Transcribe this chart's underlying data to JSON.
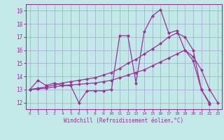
{
  "xlabel": "Windchill (Refroidissement éolien,°C)",
  "xlim": [
    -0.5,
    23.5
  ],
  "ylim": [
    11.5,
    19.5
  ],
  "xticks": [
    0,
    1,
    2,
    3,
    4,
    5,
    6,
    7,
    8,
    9,
    10,
    11,
    12,
    13,
    14,
    15,
    16,
    17,
    18,
    19,
    20,
    21,
    22,
    23
  ],
  "yticks": [
    12,
    13,
    14,
    15,
    16,
    17,
    18,
    19
  ],
  "background_color": "#c2e8e8",
  "grid_color": "#a0a8cc",
  "line_color": "#993399",
  "line1_x": [
    0,
    1,
    2,
    3,
    4,
    5,
    6,
    7,
    8,
    9,
    10,
    11,
    12,
    13,
    14,
    15,
    16,
    17,
    18,
    19,
    20,
    21,
    22
  ],
  "line1_y": [
    13.0,
    13.7,
    13.3,
    13.5,
    13.3,
    13.3,
    12.0,
    12.9,
    12.9,
    12.9,
    13.0,
    17.1,
    17.1,
    13.5,
    17.4,
    18.6,
    19.1,
    17.3,
    17.5,
    16.0,
    15.2,
    13.0,
    11.9
  ],
  "line2_x": [
    0,
    1,
    2,
    3,
    4,
    5,
    6,
    7,
    8,
    9,
    10,
    11,
    12,
    13,
    14,
    15,
    16,
    17,
    18,
    19,
    20,
    21,
    22
  ],
  "line2_y": [
    13.0,
    13.1,
    13.2,
    13.35,
    13.5,
    13.6,
    13.7,
    13.8,
    13.9,
    14.1,
    14.3,
    14.6,
    15.0,
    15.3,
    15.7,
    16.1,
    16.5,
    17.0,
    17.3,
    17.0,
    16.0,
    13.0,
    12.0
  ],
  "line3_x": [
    0,
    1,
    2,
    3,
    4,
    5,
    6,
    7,
    8,
    9,
    10,
    11,
    12,
    13,
    14,
    15,
    16,
    17,
    18,
    19,
    20,
    21,
    22,
    23
  ],
  "line3_y": [
    13.0,
    13.05,
    13.1,
    13.2,
    13.3,
    13.35,
    13.4,
    13.45,
    13.5,
    13.6,
    13.7,
    13.9,
    14.1,
    14.3,
    14.5,
    14.8,
    15.1,
    15.4,
    15.7,
    16.0,
    15.5,
    14.5,
    13.0,
    12.0
  ]
}
